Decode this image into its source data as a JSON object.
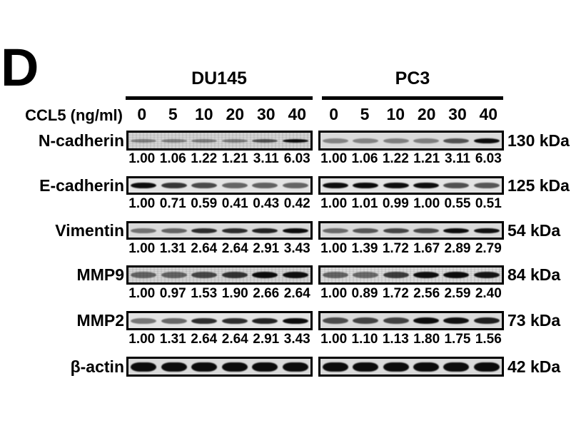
{
  "figure": {
    "panel_label": "D",
    "group_labels": {
      "left": "DU145",
      "right": "PC3"
    },
    "dose_axis_label": "CCL5 (ng/ml)",
    "doses": [
      "0",
      "5",
      "10",
      "20",
      "30",
      "40"
    ],
    "rows": [
      {
        "protein": "N-cadherin",
        "mw": "130 kDa",
        "du145_values": [
          "1.00",
          "1.06",
          "1.22",
          "1.21",
          "3.11",
          "6.03"
        ],
        "pc3_values": [
          "1.00",
          "1.06",
          "1.22",
          "1.21",
          "3.11",
          "6.03"
        ]
      },
      {
        "protein": "E-cadherin",
        "mw": "125 kDa",
        "du145_values": [
          "1.00",
          "0.71",
          "0.59",
          "0.41",
          "0.43",
          "0.42"
        ],
        "pc3_values": [
          "1.00",
          "1.01",
          "0.99",
          "1.00",
          "0.55",
          "0.51"
        ]
      },
      {
        "protein": "Vimentin",
        "mw": "54 kDa",
        "du145_values": [
          "1.00",
          "1.31",
          "2.64",
          "2.64",
          "2.91",
          "3.43"
        ],
        "pc3_values": [
          "1.00",
          "1.39",
          "1.72",
          "1.67",
          "2.89",
          "2.79"
        ]
      },
      {
        "protein": "MMP9",
        "mw": "84 kDa",
        "du145_values": [
          "1.00",
          "0.97",
          "1.53",
          "1.90",
          "2.66",
          "2.64"
        ],
        "pc3_values": [
          "1.00",
          "0.89",
          "1.72",
          "2.56",
          "2.59",
          "2.40"
        ]
      },
      {
        "protein": "MMP2",
        "mw": "73 kDa",
        "du145_values": [
          "1.00",
          "1.31",
          "2.64",
          "2.64",
          "2.91",
          "3.43"
        ],
        "pc3_values": [
          "1.00",
          "1.10",
          "1.13",
          "1.80",
          "1.75",
          "1.56"
        ]
      },
      {
        "protein": "β-actin",
        "mw": "42 kDa",
        "du145_values": null,
        "pc3_values": null
      }
    ],
    "colors": {
      "text": "#000000",
      "rule": "#000000",
      "blot_border": "#000000",
      "background": "#ffffff"
    }
  }
}
